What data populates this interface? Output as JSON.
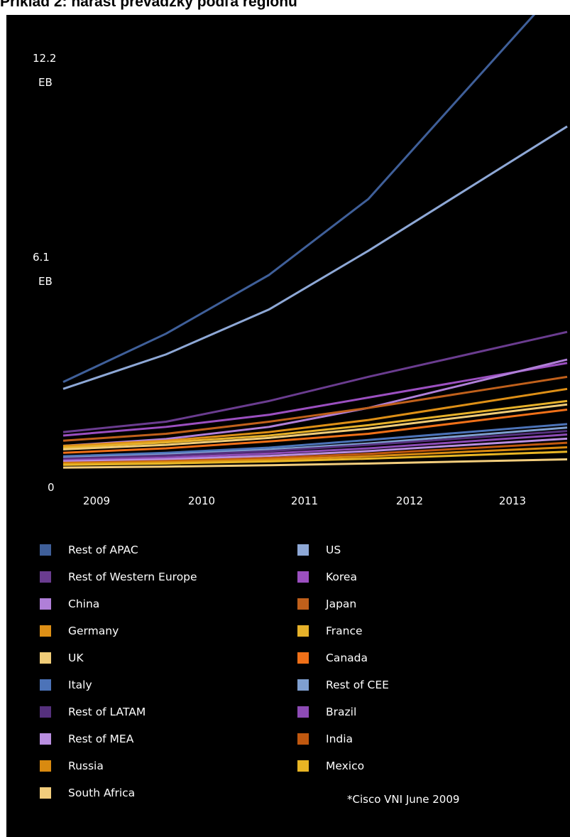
{
  "title": "Príklad 2: nárast prevádzky podľa regiónu",
  "source": "*Cisco VNI June 2009",
  "chart_data": {
    "type": "line",
    "x": [
      "2009",
      "2010",
      "2011",
      "2012",
      "2013"
    ],
    "y_tick_labels": [
      {
        "value": 12.2,
        "line1": "12.2",
        "line2": "EB"
      },
      {
        "value": 6.1,
        "line1": "6.1",
        "line2": "EB"
      },
      {
        "value": 0,
        "line1": "0",
        "line2": ""
      }
    ],
    "ylim": [
      0,
      12.2
    ],
    "grid": false,
    "legend_position": "bottom",
    "series": [
      {
        "name": "Rest of APAC",
        "color": "#3f5f99",
        "values": [
          2.6,
          4.0,
          5.7,
          7.9,
          11.1
        ]
      },
      {
        "name": "US",
        "color": "#8ea8d6",
        "values": [
          2.4,
          3.4,
          4.7,
          6.4,
          8.2
        ]
      },
      {
        "name": "Rest of Western Europe",
        "color": "#6a3c8f",
        "values": [
          1.15,
          1.45,
          2.05,
          2.75,
          3.4
        ]
      },
      {
        "name": "Korea",
        "color": "#9b4fc0",
        "values": [
          1.05,
          1.3,
          1.65,
          2.15,
          2.65
        ]
      },
      {
        "name": "China",
        "color": "#b07fd8",
        "values": [
          0.75,
          0.95,
          1.3,
          1.85,
          2.55
        ]
      },
      {
        "name": "Japan",
        "color": "#c0601b",
        "values": [
          0.9,
          1.1,
          1.45,
          1.85,
          2.3
        ]
      },
      {
        "name": "Germany",
        "color": "#dd8f16",
        "values": [
          0.75,
          0.9,
          1.15,
          1.5,
          1.95
        ]
      },
      {
        "name": "France",
        "color": "#e6b12a",
        "values": [
          0.7,
          0.85,
          1.05,
          1.35,
          1.7
        ]
      },
      {
        "name": "UK",
        "color": "#f0cc78",
        "values": [
          0.65,
          0.78,
          0.98,
          1.25,
          1.6
        ]
      },
      {
        "name": "Canada",
        "color": "#f07018",
        "values": [
          0.55,
          0.68,
          0.88,
          1.1,
          1.45
        ]
      },
      {
        "name": "Italy",
        "color": "#4c73b8",
        "values": [
          0.45,
          0.55,
          0.7,
          0.92,
          1.15
        ]
      },
      {
        "name": "Rest of CEE",
        "color": "#7f9fd0",
        "values": [
          0.4,
          0.5,
          0.64,
          0.82,
          1.05
        ]
      },
      {
        "name": "Rest of LATAM",
        "color": "#55307d",
        "values": [
          0.38,
          0.47,
          0.6,
          0.78,
          0.98
        ]
      },
      {
        "name": "Brazil",
        "color": "#8d4bb5",
        "values": [
          0.33,
          0.41,
          0.53,
          0.68,
          0.88
        ]
      },
      {
        "name": "Rest of MEA",
        "color": "#b98ee0",
        "values": [
          0.3,
          0.36,
          0.46,
          0.6,
          0.78
        ]
      },
      {
        "name": "India",
        "color": "#c0580f",
        "values": [
          0.26,
          0.31,
          0.4,
          0.52,
          0.68
        ]
      },
      {
        "name": "Russia",
        "color": "#d98a10",
        "values": [
          0.24,
          0.28,
          0.35,
          0.45,
          0.58
        ]
      },
      {
        "name": "Mexico",
        "color": "#e8b524",
        "values": [
          0.2,
          0.24,
          0.3,
          0.38,
          0.48
        ]
      },
      {
        "name": "South Africa",
        "color": "#f2cd7c",
        "values": [
          0.12,
          0.15,
          0.19,
          0.24,
          0.3
        ]
      }
    ]
  },
  "legend": {
    "left": [
      "Rest of APAC",
      "Rest of Western Europe",
      "China",
      "Germany",
      "UK",
      "Italy",
      "Rest of LATAM",
      "Rest of MEA",
      "Russia",
      "South Africa"
    ],
    "right": [
      "US",
      "Korea",
      "Japan",
      "France",
      "Canada",
      "Rest of CEE",
      "Brazil",
      "India",
      "Mexico"
    ]
  }
}
